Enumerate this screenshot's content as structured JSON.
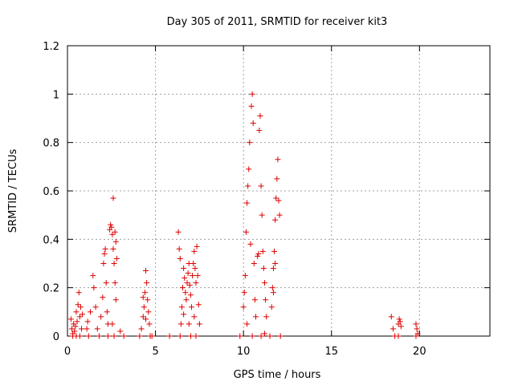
{
  "chart_data": {
    "type": "scatter",
    "title": "Day 305 of 2011, SRMTID for receiver kit3",
    "xlabel": "GPS time / hours",
    "ylabel": "SRMTID / TECUs",
    "xlim": [
      0,
      24
    ],
    "ylim": [
      0,
      1.2
    ],
    "x_ticks": [
      0,
      5,
      10,
      15,
      20
    ],
    "x_tick_labels": [
      "0",
      "5",
      "10",
      "15",
      "20"
    ],
    "y_ticks": [
      0,
      0.2,
      0.4,
      0.6,
      0.8,
      1.0,
      1.2
    ],
    "y_tick_labels": [
      "0",
      "0.2",
      "0.4",
      "0.6",
      "0.8",
      "1",
      "1.2"
    ],
    "grid": true,
    "marker": "+",
    "color": "#dd0000",
    "series": [
      {
        "name": "SRMTID",
        "points": [
          [
            0.2,
            0.07
          ],
          [
            0.25,
            0.03
          ],
          [
            0.3,
            0.01
          ],
          [
            0.35,
            0.05
          ],
          [
            0.4,
            0.02
          ],
          [
            0.45,
            0.04
          ],
          [
            0.5,
            0.1
          ],
          [
            0.55,
            0.06
          ],
          [
            0.6,
            0.13
          ],
          [
            0.65,
            0.18
          ],
          [
            0.7,
            0.08
          ],
          [
            0.75,
            0.12
          ],
          [
            0.8,
            0.03
          ],
          [
            0.85,
            0.09
          ],
          [
            0.5,
            0.0
          ],
          [
            0.7,
            0.0
          ],
          [
            0.3,
            0.0
          ],
          [
            1.1,
            0.03
          ],
          [
            1.15,
            0.06
          ],
          [
            1.3,
            0.1
          ],
          [
            1.45,
            0.25
          ],
          [
            1.5,
            0.2
          ],
          [
            1.6,
            0.12
          ],
          [
            1.7,
            0.03
          ],
          [
            1.8,
            0.0
          ],
          [
            1.9,
            0.08
          ],
          [
            2.0,
            0.16
          ],
          [
            2.05,
            0.3
          ],
          [
            2.1,
            0.34
          ],
          [
            2.15,
            0.36
          ],
          [
            2.2,
            0.22
          ],
          [
            2.25,
            0.1
          ],
          [
            2.3,
            0.05
          ],
          [
            2.4,
            0.44
          ],
          [
            2.45,
            0.46
          ],
          [
            2.5,
            0.45
          ],
          [
            2.55,
            0.42
          ],
          [
            2.6,
            0.36
          ],
          [
            2.65,
            0.3
          ],
          [
            2.7,
            0.22
          ],
          [
            2.75,
            0.15
          ],
          [
            2.6,
            0.57
          ],
          [
            2.7,
            0.43
          ],
          [
            2.75,
            0.39
          ],
          [
            2.8,
            0.32
          ],
          [
            2.55,
            0.05
          ],
          [
            2.65,
            0.0
          ],
          [
            3.0,
            0.02
          ],
          [
            3.2,
            0.0
          ],
          [
            1.2,
            0.0
          ],
          [
            2.3,
            0.0
          ],
          [
            4.1,
            0.0
          ],
          [
            4.2,
            0.03
          ],
          [
            4.3,
            0.08
          ],
          [
            4.35,
            0.12
          ],
          [
            4.4,
            0.18
          ],
          [
            4.45,
            0.27
          ],
          [
            4.5,
            0.22
          ],
          [
            4.55,
            0.15
          ],
          [
            4.6,
            0.1
          ],
          [
            4.65,
            0.05
          ],
          [
            4.3,
            0.16
          ],
          [
            4.45,
            0.07
          ],
          [
            4.7,
            0.0
          ],
          [
            4.8,
            0.0
          ],
          [
            6.3,
            0.43
          ],
          [
            6.35,
            0.36
          ],
          [
            6.4,
            0.32
          ],
          [
            6.45,
            0.05
          ],
          [
            6.5,
            0.12
          ],
          [
            6.55,
            0.2
          ],
          [
            6.6,
            0.28
          ],
          [
            6.65,
            0.24
          ],
          [
            6.7,
            0.18
          ],
          [
            6.75,
            0.15
          ],
          [
            6.8,
            0.22
          ],
          [
            6.85,
            0.26
          ],
          [
            6.9,
            0.3
          ],
          [
            6.95,
            0.21
          ],
          [
            7.0,
            0.17
          ],
          [
            7.05,
            0.12
          ],
          [
            7.1,
            0.25
          ],
          [
            7.15,
            0.3
          ],
          [
            7.2,
            0.35
          ],
          [
            7.25,
            0.28
          ],
          [
            7.3,
            0.22
          ],
          [
            7.35,
            0.37
          ],
          [
            7.4,
            0.25
          ],
          [
            7.45,
            0.13
          ],
          [
            7.5,
            0.05
          ],
          [
            6.6,
            0.09
          ],
          [
            6.9,
            0.05
          ],
          [
            7.2,
            0.08
          ],
          [
            6.4,
            0.0
          ],
          [
            7.0,
            0.0
          ],
          [
            7.3,
            0.0
          ],
          [
            5.8,
            0.0
          ],
          [
            9.8,
            0.0
          ],
          [
            10.0,
            0.12
          ],
          [
            10.05,
            0.18
          ],
          [
            10.1,
            0.25
          ],
          [
            10.15,
            0.43
          ],
          [
            10.2,
            0.55
          ],
          [
            10.25,
            0.62
          ],
          [
            10.3,
            0.69
          ],
          [
            10.35,
            0.8
          ],
          [
            10.4,
            0.38
          ],
          [
            10.45,
            0.95
          ],
          [
            10.5,
            1.0
          ],
          [
            10.55,
            0.88
          ],
          [
            10.6,
            0.3
          ],
          [
            10.65,
            0.15
          ],
          [
            10.7,
            0.08
          ],
          [
            10.2,
            0.05
          ],
          [
            10.5,
            0.0
          ],
          [
            10.8,
            0.33
          ],
          [
            10.85,
            0.34
          ],
          [
            10.9,
            0.85
          ],
          [
            10.95,
            0.91
          ],
          [
            11.0,
            0.62
          ],
          [
            11.05,
            0.5
          ],
          [
            11.1,
            0.35
          ],
          [
            11.15,
            0.28
          ],
          [
            11.2,
            0.22
          ],
          [
            11.25,
            0.15
          ],
          [
            11.3,
            0.08
          ],
          [
            11.2,
            0.01
          ],
          [
            11.0,
            0.0
          ],
          [
            11.5,
            0.0
          ],
          [
            11.6,
            0.12
          ],
          [
            11.65,
            0.2
          ],
          [
            11.7,
            0.28
          ],
          [
            11.75,
            0.35
          ],
          [
            11.8,
            0.48
          ],
          [
            11.85,
            0.57
          ],
          [
            11.9,
            0.65
          ],
          [
            11.95,
            0.73
          ],
          [
            12.0,
            0.56
          ],
          [
            12.05,
            0.5
          ],
          [
            11.7,
            0.18
          ],
          [
            11.8,
            0.3
          ],
          [
            12.1,
            0.0
          ],
          [
            18.4,
            0.08
          ],
          [
            18.5,
            0.03
          ],
          [
            18.6,
            0.0
          ],
          [
            18.8,
            0.05
          ],
          [
            18.85,
            0.07
          ],
          [
            18.9,
            0.06
          ],
          [
            18.95,
            0.04
          ],
          [
            18.8,
            0.0
          ],
          [
            19.8,
            0.05
          ],
          [
            19.85,
            0.03
          ],
          [
            19.9,
            0.01
          ],
          [
            19.8,
            0.0
          ]
        ]
      }
    ]
  }
}
